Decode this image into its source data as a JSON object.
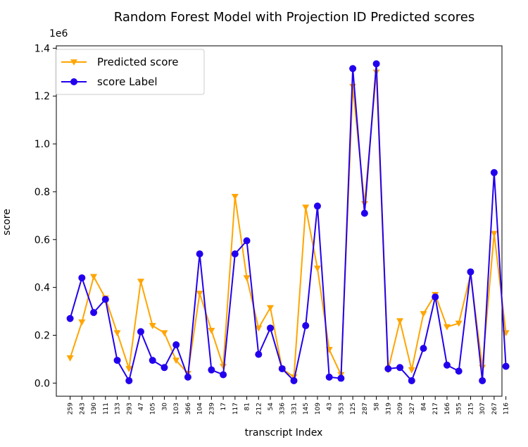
{
  "chart_data": {
    "type": "line",
    "title": "Random Forest Model with Projection ID Predicted scores",
    "xlabel": "transcript Index",
    "ylabel": "score",
    "y_offset_text": "1e6",
    "y_unit_multiplier": 1000000,
    "ylim": [
      -0.055,
      1.41
    ],
    "yticks": [
      0.0,
      0.2,
      0.4,
      0.6,
      0.8,
      1.0,
      1.2,
      1.4
    ],
    "ytick_labels": [
      "0.0",
      "0.2",
      "0.4",
      "0.6",
      "0.8",
      "1.0",
      "1.2",
      "1.4"
    ],
    "grid": false,
    "legend_position": "top-left",
    "categories": [
      "259",
      "243",
      "190",
      "111",
      "133",
      "293",
      "47",
      "105",
      "30",
      "103",
      "366",
      "104",
      "239",
      "17",
      "117",
      "81",
      "212",
      "54",
      "336",
      "331",
      "145",
      "109",
      "43",
      "353",
      "125",
      "287",
      "58",
      "319",
      "209",
      "327",
      "84",
      "217",
      "166",
      "355",
      "215",
      "307",
      "267",
      "116"
    ],
    "series": [
      {
        "name": "Predicted score",
        "color": "#FFA500",
        "marker": "triangle-down",
        "values": [
          0.105,
          0.255,
          0.445,
          0.355,
          0.21,
          0.06,
          0.425,
          0.24,
          0.21,
          0.095,
          0.04,
          0.375,
          0.22,
          0.07,
          0.78,
          0.44,
          0.23,
          0.315,
          0.06,
          0.025,
          0.735,
          0.48,
          0.14,
          0.035,
          1.24,
          0.75,
          1.3,
          0.055,
          0.26,
          0.055,
          0.29,
          0.37,
          0.235,
          0.25,
          0.455,
          0.065,
          0.625,
          0.21
        ]
      },
      {
        "name": "score Label",
        "color": "#2200EE",
        "marker": "circle",
        "values": [
          0.27,
          0.44,
          0.295,
          0.35,
          0.095,
          0.01,
          0.215,
          0.095,
          0.065,
          0.16,
          0.025,
          0.54,
          0.055,
          0.035,
          0.54,
          0.595,
          0.12,
          0.23,
          0.06,
          0.01,
          0.24,
          0.74,
          0.025,
          0.02,
          1.315,
          0.71,
          1.335,
          0.06,
          0.065,
          0.01,
          0.145,
          0.36,
          0.075,
          0.05,
          0.465,
          0.01,
          0.88,
          0.07
        ]
      }
    ]
  }
}
